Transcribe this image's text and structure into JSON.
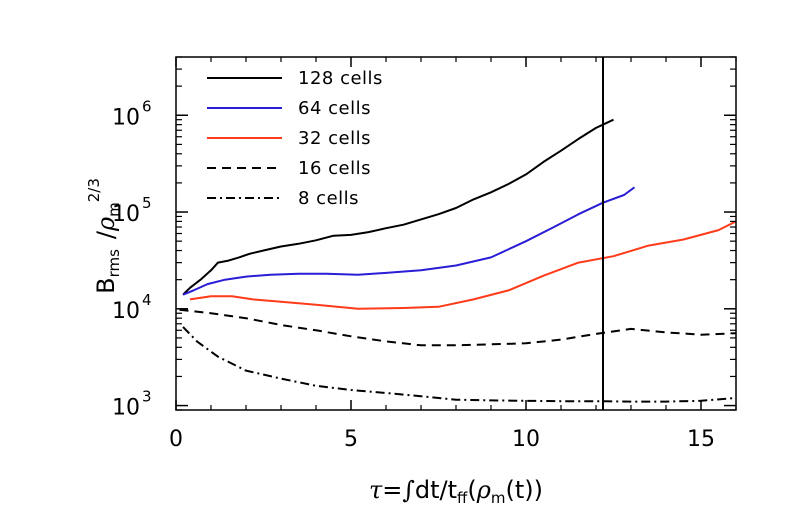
{
  "chart_data": {
    "type": "line",
    "x_axis": {
      "label_parts": {
        "tau": "τ",
        "eq": "=",
        "integral": "∫",
        "dt": "dt/t",
        "ff": "ff",
        "open": "(",
        "rho": "ρ",
        "m": "m",
        "rest": "(t))"
      },
      "range": [
        0,
        16
      ],
      "ticks": [
        0,
        5,
        10,
        15
      ],
      "tick_labels": [
        "0",
        "5",
        "10",
        "15"
      ]
    },
    "y_axis": {
      "scale": "log",
      "label_parts": {
        "B": "B",
        "rms": "rms",
        "slash": "/",
        "rho": "ρ",
        "m": "m",
        "exp": "2/3"
      },
      "range": [
        900,
        4000000
      ],
      "ticks": [
        1000,
        10000,
        100000,
        1000000
      ],
      "tick_base": [
        "10",
        "10",
        "10",
        "10"
      ],
      "tick_exp": [
        "3",
        "4",
        "5",
        "6"
      ]
    },
    "vertical_line_x": 12.2,
    "legend_position": "top-left",
    "series": [
      {
        "name": "128 cells",
        "color": "#000000",
        "dash": "solid",
        "x": [
          0.2,
          0.4,
          0.7,
          1.0,
          1.2,
          1.5,
          1.8,
          2.1,
          2.5,
          3.0,
          3.5,
          4.0,
          4.5,
          5.0,
          5.5,
          6.0,
          6.5,
          7.0,
          7.5,
          8.0,
          8.5,
          9.0,
          9.5,
          10.0,
          10.5,
          11.0,
          11.5,
          12.0,
          12.5
        ],
        "y": [
          14000,
          16500,
          20000,
          25000,
          30000,
          31500,
          34000,
          37000,
          40000,
          44000,
          47000,
          51000,
          57000,
          58000,
          62000,
          68000,
          74000,
          84000,
          95000,
          110000,
          135000,
          160000,
          195000,
          245000,
          330000,
          430000,
          570000,
          740000,
          900000
        ]
      },
      {
        "name": "64 cells",
        "color": "#2a1dd6",
        "dash": "solid",
        "x": [
          0.2,
          0.5,
          0.9,
          1.4,
          2.0,
          2.7,
          3.5,
          4.3,
          5.2,
          6.0,
          7.0,
          8.0,
          9.0,
          10.0,
          10.8,
          11.5,
          12.2,
          12.8,
          13.1
        ],
        "y": [
          14000,
          15500,
          18000,
          20000,
          21500,
          22500,
          23000,
          23000,
          22500,
          23500,
          25000,
          28000,
          34000,
          50000,
          70000,
          95000,
          125000,
          150000,
          180000
        ]
      },
      {
        "name": "32 cells",
        "color": "#ff3b1a",
        "dash": "solid",
        "x": [
          0.4,
          1.0,
          1.6,
          2.2,
          3.0,
          4.0,
          5.2,
          6.5,
          7.5,
          8.5,
          9.5,
          10.5,
          11.5,
          12.5,
          13.5,
          14.5,
          15.5,
          16.0
        ],
        "y": [
          12500,
          13500,
          13500,
          12500,
          11800,
          11000,
          10000,
          10200,
          10500,
          12500,
          15500,
          22000,
          30000,
          35000,
          45000,
          52000,
          65000,
          80000
        ]
      },
      {
        "name": "16 cells",
        "color": "#000000",
        "dash": "dashed",
        "x": [
          0.1,
          1.0,
          2.0,
          3.0,
          4.0,
          5.0,
          6.0,
          7.0,
          8.0,
          9.0,
          10.0,
          11.0,
          12.0,
          13.0,
          14.0,
          15.0,
          16.0
        ],
        "y": [
          9800,
          9000,
          8000,
          6800,
          6000,
          5200,
          4600,
          4200,
          4200,
          4300,
          4400,
          4800,
          5500,
          6200,
          5700,
          5400,
          5600
        ]
      },
      {
        "name": "8 cells",
        "color": "#000000",
        "dash": "dashdot",
        "x": [
          0.2,
          0.6,
          1.2,
          2.0,
          3.0,
          4.0,
          5.0,
          6.0,
          7.0,
          8.0,
          9.0,
          10.0,
          11.0,
          12.0,
          13.0,
          14.0,
          15.0,
          16.0
        ],
        "y": [
          6500,
          4600,
          3200,
          2300,
          1900,
          1600,
          1450,
          1350,
          1250,
          1150,
          1130,
          1120,
          1110,
          1110,
          1100,
          1100,
          1120,
          1200
        ]
      }
    ]
  }
}
